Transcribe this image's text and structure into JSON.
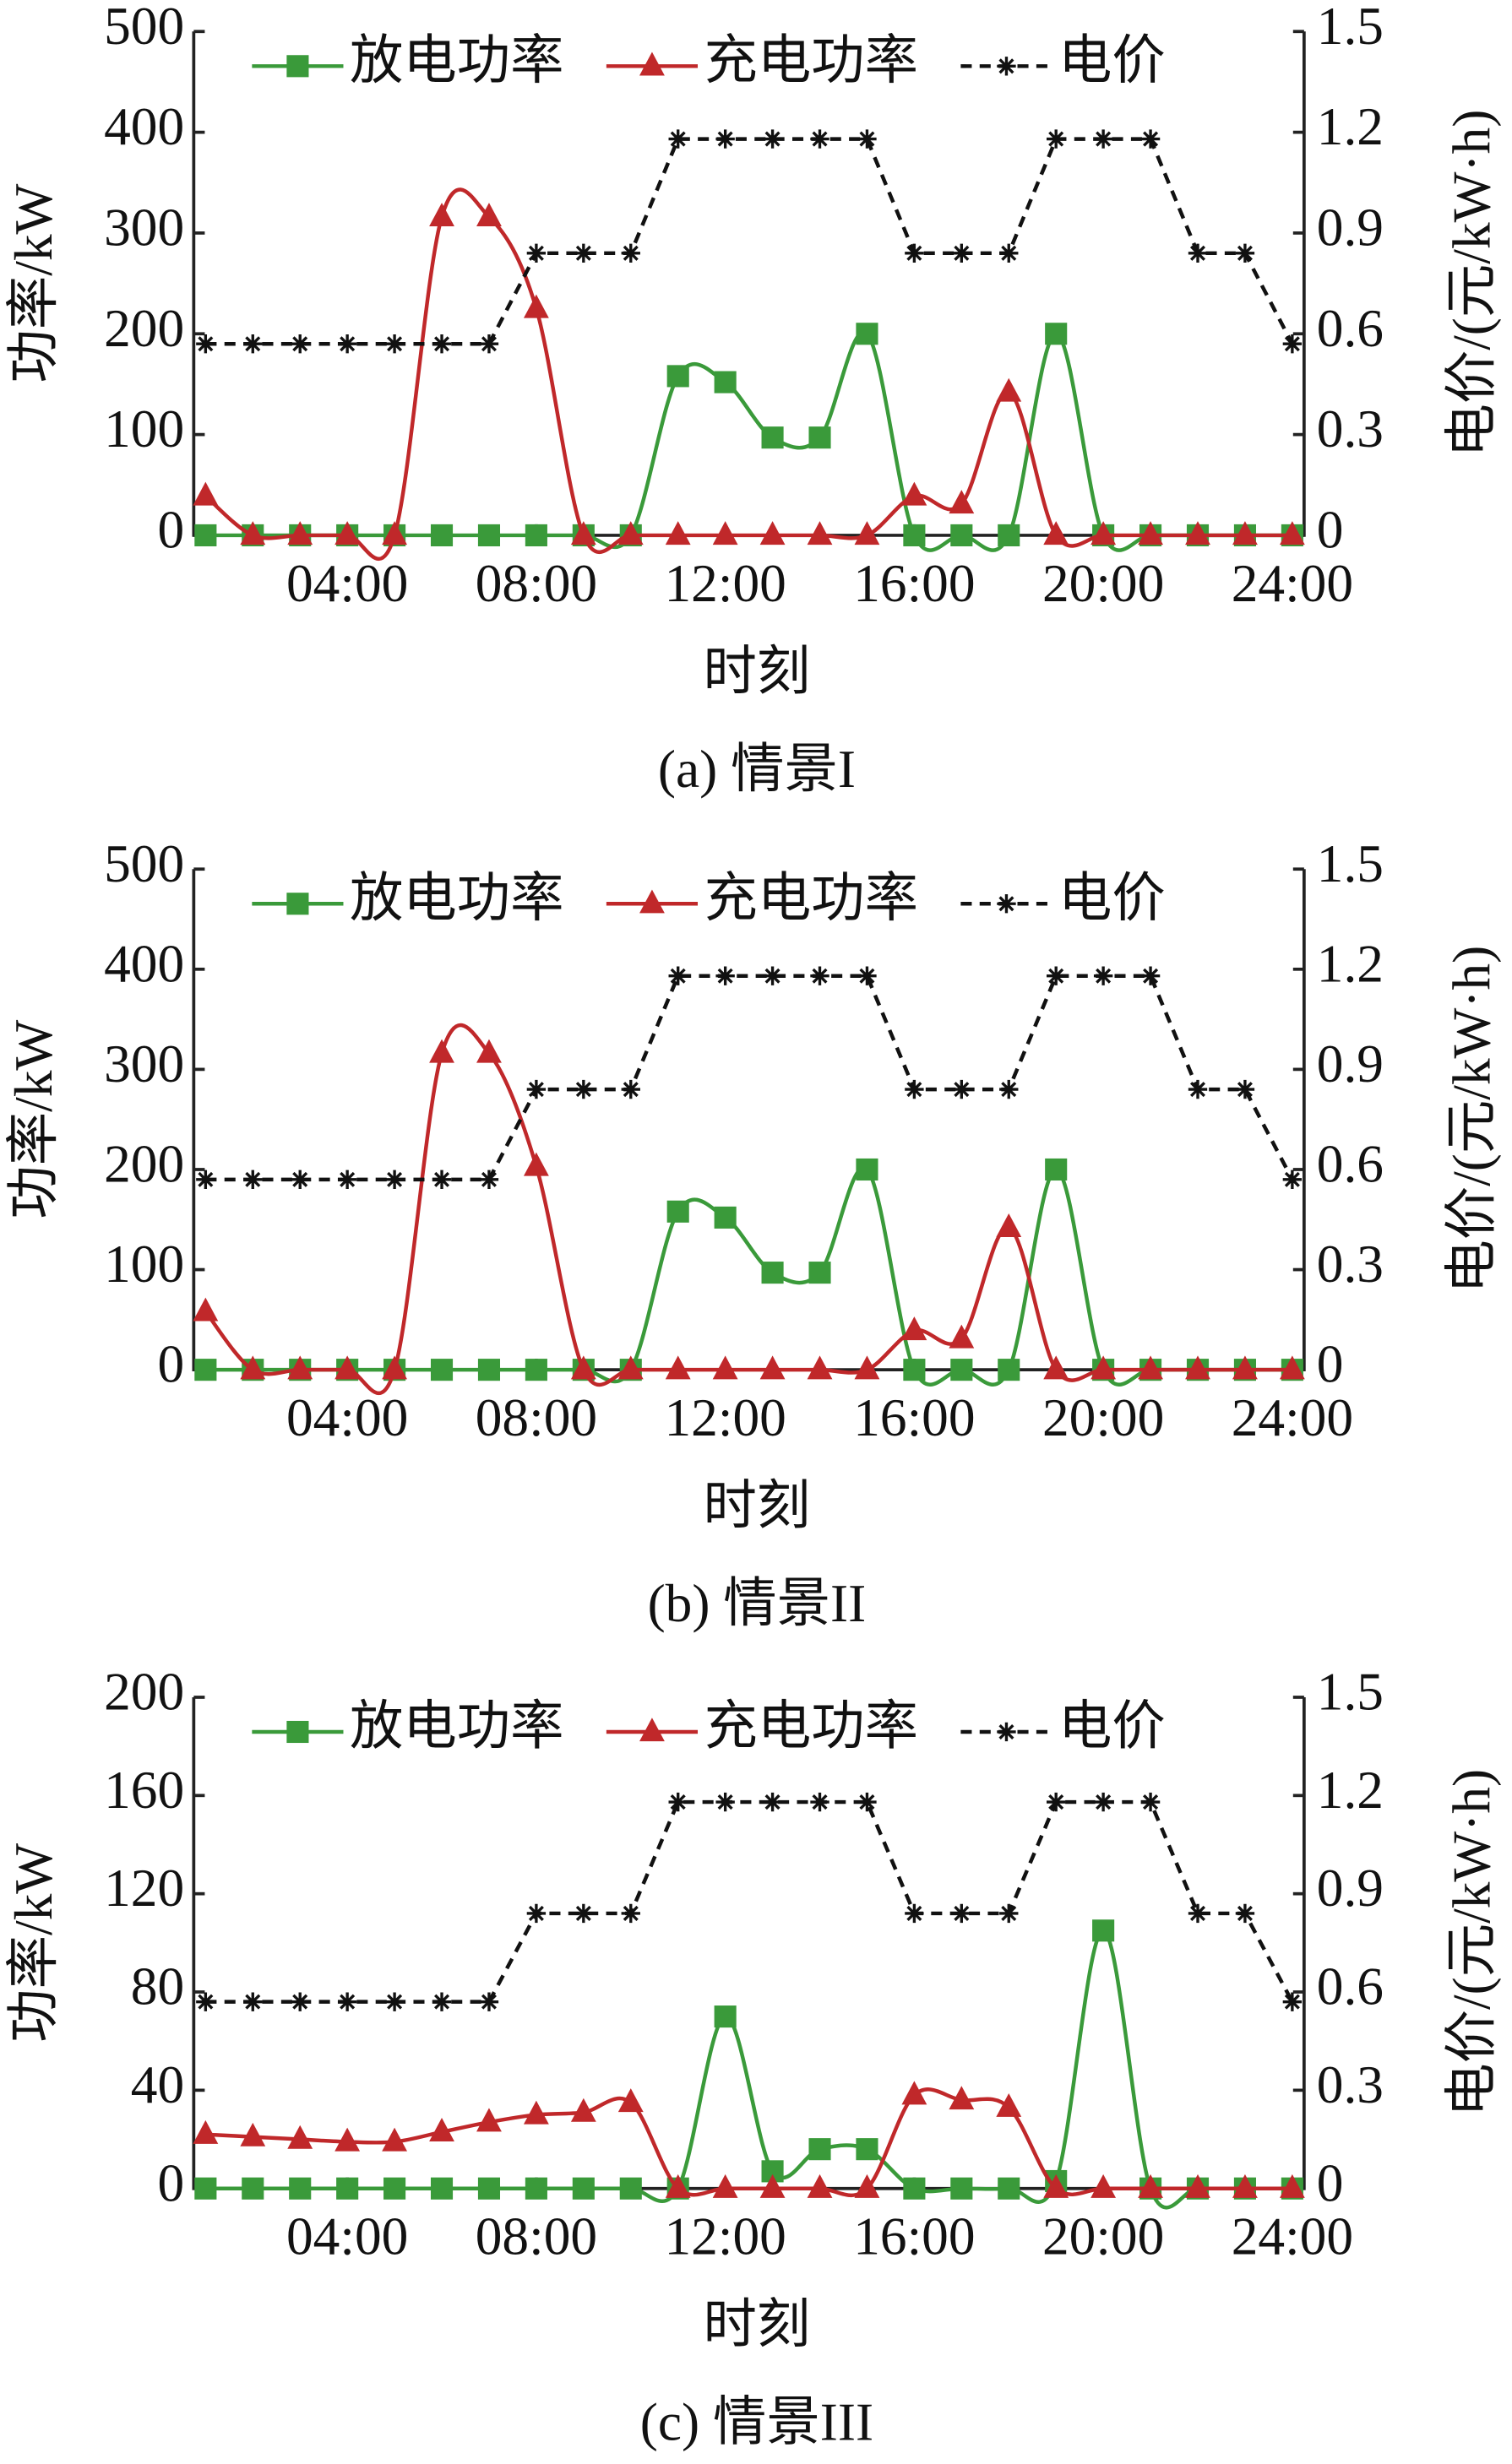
{
  "chart_data": [
    {
      "type": "line",
      "title": "(a) 情景I",
      "xlabel": "时刻",
      "ylabel": "功率/kW",
      "y2label": "电价/(元/kW·h)",
      "x": [
        1,
        2,
        3,
        4,
        5,
        6,
        7,
        8,
        9,
        10,
        11,
        12,
        13,
        14,
        15,
        16,
        17,
        18,
        19,
        20,
        21,
        22,
        23,
        24
      ],
      "xlim": [
        0.75,
        24.25
      ],
      "xticks": [
        {
          "value": 4,
          "label": "04:00"
        },
        {
          "value": 8,
          "label": "08:00"
        },
        {
          "value": 12,
          "label": "12:00"
        },
        {
          "value": 16,
          "label": "16:00"
        },
        {
          "value": 20,
          "label": "20:00"
        },
        {
          "value": 24,
          "label": "24:00"
        }
      ],
      "ylim": [
        0,
        500
      ],
      "yticks": [
        0,
        100,
        200,
        300,
        400,
        500
      ],
      "y2lim": [
        0,
        1.5
      ],
      "y2ticks": [
        0,
        0.3,
        0.6,
        0.9,
        1.2,
        1.5
      ],
      "series": [
        {
          "name": "放电功率",
          "color": "#3a9a3a",
          "marker": "square",
          "values": [
            0,
            0,
            0,
            0,
            0,
            0,
            0,
            0,
            0,
            0,
            158,
            152,
            97,
            97,
            200,
            0,
            0,
            0,
            200,
            0,
            0,
            0,
            0,
            0
          ]
        },
        {
          "name": "充电功率",
          "color": "#c0282a",
          "marker": "triangle",
          "values": [
            39,
            0,
            0,
            0,
            0,
            316,
            316,
            225,
            0,
            0,
            0,
            0,
            0,
            0,
            0,
            39,
            31,
            142,
            0,
            0,
            0,
            0,
            0,
            0
          ]
        },
        {
          "name": "电价",
          "color": "#111111",
          "marker": "asterisk",
          "dashed": true,
          "axis": "y2",
          "values": [
            0.57,
            0.57,
            0.57,
            0.57,
            0.57,
            0.57,
            0.57,
            0.84,
            0.84,
            0.84,
            1.18,
            1.18,
            1.18,
            1.18,
            1.18,
            0.84,
            0.84,
            0.84,
            1.18,
            1.18,
            1.18,
            0.84,
            0.84,
            0.57
          ]
        }
      ]
    },
    {
      "type": "line",
      "title": "(b) 情景II",
      "xlabel": "时刻",
      "ylabel": "功率/kW",
      "y2label": "电价/(元/kW·h)",
      "x": [
        1,
        2,
        3,
        4,
        5,
        6,
        7,
        8,
        9,
        10,
        11,
        12,
        13,
        14,
        15,
        16,
        17,
        18,
        19,
        20,
        21,
        22,
        23,
        24
      ],
      "xlim": [
        0.75,
        24.25
      ],
      "xticks": [
        {
          "value": 4,
          "label": "04:00"
        },
        {
          "value": 8,
          "label": "08:00"
        },
        {
          "value": 12,
          "label": "12:00"
        },
        {
          "value": 16,
          "label": "16:00"
        },
        {
          "value": 20,
          "label": "20:00"
        },
        {
          "value": 24,
          "label": "24:00"
        }
      ],
      "ylim": [
        0,
        500
      ],
      "yticks": [
        0,
        100,
        200,
        300,
        400,
        500
      ],
      "y2lim": [
        0,
        1.5
      ],
      "y2ticks": [
        0,
        0.3,
        0.6,
        0.9,
        1.2,
        1.5
      ],
      "series": [
        {
          "name": "放电功率",
          "color": "#3a9a3a",
          "marker": "square",
          "values": [
            0,
            0,
            0,
            0,
            0,
            0,
            0,
            0,
            0,
            0,
            158,
            152,
            97,
            97,
            200,
            0,
            0,
            0,
            200,
            0,
            0,
            0,
            0,
            0
          ]
        },
        {
          "name": "充电功率",
          "color": "#c0282a",
          "marker": "triangle",
          "values": [
            58,
            0,
            0,
            0,
            0,
            316,
            316,
            203,
            0,
            0,
            0,
            0,
            0,
            0,
            0,
            39,
            31,
            142,
            0,
            0,
            0,
            0,
            0,
            0
          ]
        },
        {
          "name": "电价",
          "color": "#111111",
          "marker": "asterisk",
          "dashed": true,
          "axis": "y2",
          "values": [
            0.57,
            0.57,
            0.57,
            0.57,
            0.57,
            0.57,
            0.57,
            0.84,
            0.84,
            0.84,
            1.18,
            1.18,
            1.18,
            1.18,
            1.18,
            0.84,
            0.84,
            0.84,
            1.18,
            1.18,
            1.18,
            0.84,
            0.84,
            0.57
          ]
        }
      ]
    },
    {
      "type": "line",
      "title": "(c) 情景III",
      "xlabel": "时刻",
      "ylabel": "功率/kW",
      "y2label": "电价/(元/kW·h)",
      "x": [
        1,
        2,
        3,
        4,
        5,
        6,
        7,
        8,
        9,
        10,
        11,
        12,
        13,
        14,
        15,
        16,
        17,
        18,
        19,
        20,
        21,
        22,
        23,
        24
      ],
      "xlim": [
        0.75,
        24.25
      ],
      "xticks": [
        {
          "value": 4,
          "label": "04:00"
        },
        {
          "value": 8,
          "label": "08:00"
        },
        {
          "value": 12,
          "label": "12:00"
        },
        {
          "value": 16,
          "label": "16:00"
        },
        {
          "value": 20,
          "label": "20:00"
        },
        {
          "value": 24,
          "label": "24:00"
        }
      ],
      "ylim": [
        0,
        200
      ],
      "yticks": [
        0,
        40,
        80,
        120,
        160,
        200
      ],
      "y2lim": [
        0,
        1.5
      ],
      "y2ticks": [
        0,
        0.3,
        0.6,
        0.9,
        1.2,
        1.5
      ],
      "series": [
        {
          "name": "放电功率",
          "color": "#3a9a3a",
          "marker": "square",
          "values": [
            0,
            0,
            0,
            0,
            0,
            0,
            0,
            0,
            0,
            0,
            0,
            70,
            7,
            16,
            16,
            0,
            0,
            0,
            3,
            105,
            0,
            0,
            0,
            0
          ]
        },
        {
          "name": "充电功率",
          "color": "#c0282a",
          "marker": "triangle",
          "values": [
            22,
            21,
            20,
            19,
            19,
            23,
            27,
            30,
            31,
            35,
            0,
            0,
            0,
            0,
            0,
            38,
            36,
            33,
            0,
            0,
            0,
            0,
            0,
            0
          ]
        },
        {
          "name": "电价",
          "color": "#111111",
          "marker": "asterisk",
          "dashed": true,
          "axis": "y2",
          "values": [
            0.57,
            0.57,
            0.57,
            0.57,
            0.57,
            0.57,
            0.57,
            0.84,
            0.84,
            0.84,
            1.18,
            1.18,
            1.18,
            1.18,
            1.18,
            0.84,
            0.84,
            0.84,
            1.18,
            1.18,
            1.18,
            0.84,
            0.84,
            0.57
          ]
        }
      ]
    }
  ]
}
